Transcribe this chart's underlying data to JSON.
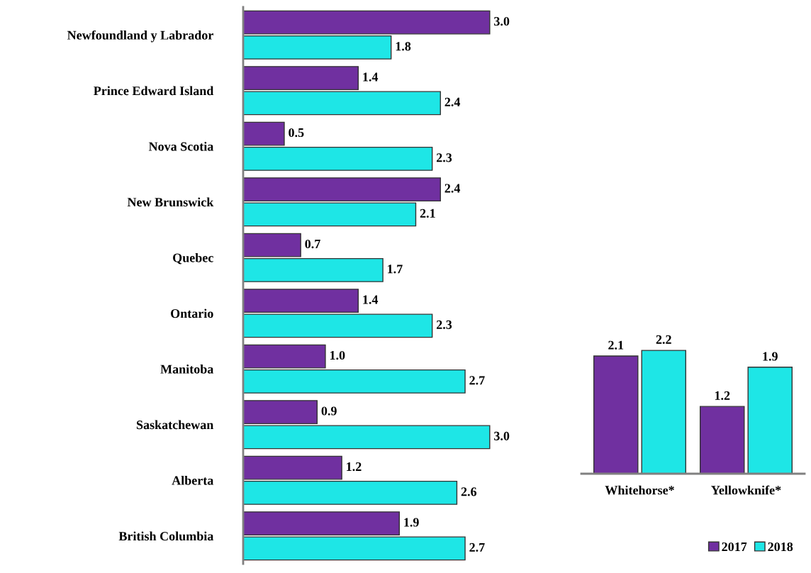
{
  "chart_data": [
    {
      "type": "bar",
      "orientation": "horizontal",
      "grid": false,
      "legend": false,
      "categories": [
        "Newfoundland y Labrador",
        "Prince Edward Island",
        "Nova Scotia",
        "New Brunswick",
        "Quebec",
        "Ontario",
        "Manitoba",
        "Saskatchewan",
        "Alberta",
        "British Columbia"
      ],
      "series": [
        {
          "color": "#7030a0",
          "values": [
            3.0,
            1.4,
            0.5,
            2.4,
            0.7,
            1.4,
            1.0,
            0.9,
            1.2,
            1.9
          ],
          "value_labels": [
            "3.0",
            "1.4",
            "0.5",
            "2.4",
            "0.7",
            "1.4",
            "1.0",
            "0.9",
            "1.2",
            "1.9"
          ]
        },
        {
          "color": "#1ee6e6",
          "values": [
            1.8,
            2.4,
            2.3,
            2.1,
            1.7,
            2.3,
            2.7,
            3.0,
            2.6,
            2.7
          ],
          "value_labels": [
            "1.8",
            "2.4",
            "2.3",
            "2.1",
            "1.7",
            "2.3",
            "2.7",
            "3.0",
            "2.6",
            "2.7"
          ]
        }
      ]
    },
    {
      "type": "bar",
      "data_labels": true,
      "grid": false,
      "legend": "bottom right",
      "categories": [
        "Whitehorse*",
        "Yellowknife*"
      ],
      "series": [
        {
          "name": "2017",
          "color": "#7030a0",
          "values": [
            2.1,
            1.2
          ]
        },
        {
          "name": "2018",
          "color": "#1ee6e6",
          "values": [
            2.2,
            1.9
          ]
        }
      ]
    }
  ]
}
